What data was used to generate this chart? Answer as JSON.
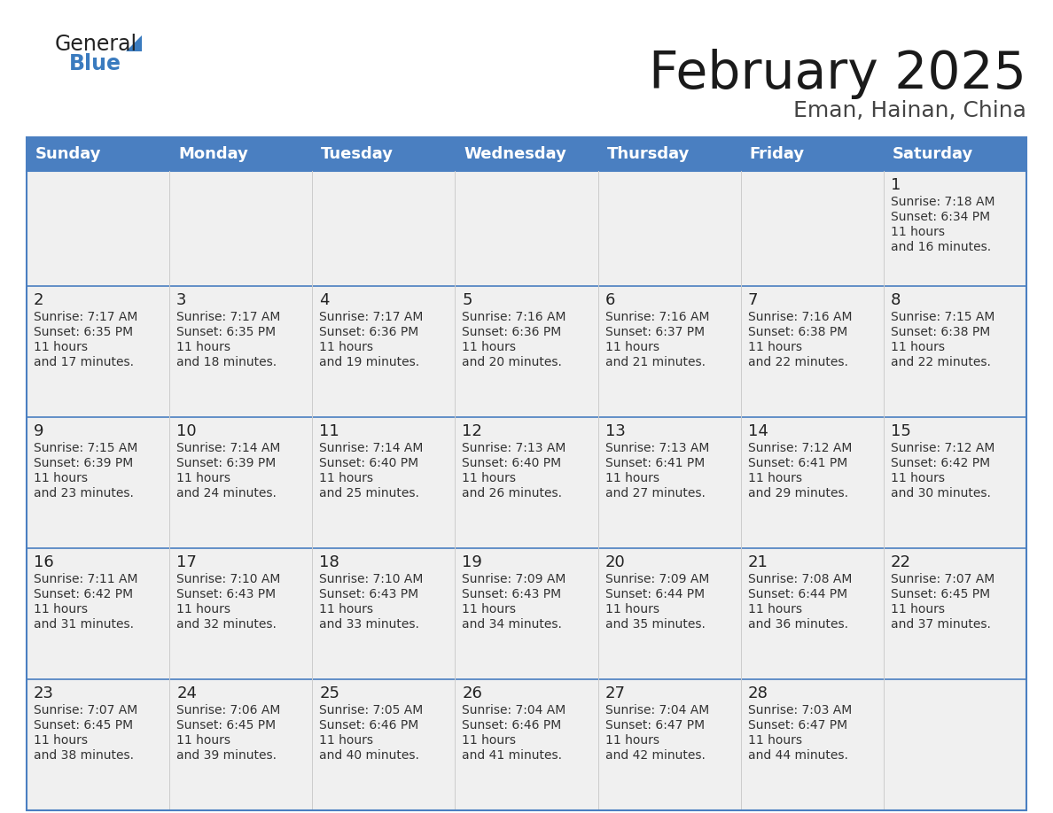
{
  "title": "February 2025",
  "subtitle": "Eman, Hainan, China",
  "days_of_week": [
    "Sunday",
    "Monday",
    "Tuesday",
    "Wednesday",
    "Thursday",
    "Friday",
    "Saturday"
  ],
  "header_bg": "#4a7fc1",
  "header_text_color": "#FFFFFF",
  "cell_bg_light": "#f0f0f0",
  "grid_line_color": "#4a7fc1",
  "title_color": "#1a1a1a",
  "subtitle_color": "#444444",
  "day_num_color": "#222222",
  "info_color": "#333333",
  "calendar_data": [
    {
      "day": 1,
      "row": 0,
      "col": 6,
      "sunrise": "7:18 AM",
      "sunset": "6:34 PM",
      "daylight": "11 hours and 16 minutes."
    },
    {
      "day": 2,
      "row": 1,
      "col": 0,
      "sunrise": "7:17 AM",
      "sunset": "6:35 PM",
      "daylight": "11 hours and 17 minutes."
    },
    {
      "day": 3,
      "row": 1,
      "col": 1,
      "sunrise": "7:17 AM",
      "sunset": "6:35 PM",
      "daylight": "11 hours and 18 minutes."
    },
    {
      "day": 4,
      "row": 1,
      "col": 2,
      "sunrise": "7:17 AM",
      "sunset": "6:36 PM",
      "daylight": "11 hours and 19 minutes."
    },
    {
      "day": 5,
      "row": 1,
      "col": 3,
      "sunrise": "7:16 AM",
      "sunset": "6:36 PM",
      "daylight": "11 hours and 20 minutes."
    },
    {
      "day": 6,
      "row": 1,
      "col": 4,
      "sunrise": "7:16 AM",
      "sunset": "6:37 PM",
      "daylight": "11 hours and 21 minutes."
    },
    {
      "day": 7,
      "row": 1,
      "col": 5,
      "sunrise": "7:16 AM",
      "sunset": "6:38 PM",
      "daylight": "11 hours and 22 minutes."
    },
    {
      "day": 8,
      "row": 1,
      "col": 6,
      "sunrise": "7:15 AM",
      "sunset": "6:38 PM",
      "daylight": "11 hours and 22 minutes."
    },
    {
      "day": 9,
      "row": 2,
      "col": 0,
      "sunrise": "7:15 AM",
      "sunset": "6:39 PM",
      "daylight": "11 hours and 23 minutes."
    },
    {
      "day": 10,
      "row": 2,
      "col": 1,
      "sunrise": "7:14 AM",
      "sunset": "6:39 PM",
      "daylight": "11 hours and 24 minutes."
    },
    {
      "day": 11,
      "row": 2,
      "col": 2,
      "sunrise": "7:14 AM",
      "sunset": "6:40 PM",
      "daylight": "11 hours and 25 minutes."
    },
    {
      "day": 12,
      "row": 2,
      "col": 3,
      "sunrise": "7:13 AM",
      "sunset": "6:40 PM",
      "daylight": "11 hours and 26 minutes."
    },
    {
      "day": 13,
      "row": 2,
      "col": 4,
      "sunrise": "7:13 AM",
      "sunset": "6:41 PM",
      "daylight": "11 hours and 27 minutes."
    },
    {
      "day": 14,
      "row": 2,
      "col": 5,
      "sunrise": "7:12 AM",
      "sunset": "6:41 PM",
      "daylight": "11 hours and 29 minutes."
    },
    {
      "day": 15,
      "row": 2,
      "col": 6,
      "sunrise": "7:12 AM",
      "sunset": "6:42 PM",
      "daylight": "11 hours and 30 minutes."
    },
    {
      "day": 16,
      "row": 3,
      "col": 0,
      "sunrise": "7:11 AM",
      "sunset": "6:42 PM",
      "daylight": "11 hours and 31 minutes."
    },
    {
      "day": 17,
      "row": 3,
      "col": 1,
      "sunrise": "7:10 AM",
      "sunset": "6:43 PM",
      "daylight": "11 hours and 32 minutes."
    },
    {
      "day": 18,
      "row": 3,
      "col": 2,
      "sunrise": "7:10 AM",
      "sunset": "6:43 PM",
      "daylight": "11 hours and 33 minutes."
    },
    {
      "day": 19,
      "row": 3,
      "col": 3,
      "sunrise": "7:09 AM",
      "sunset": "6:43 PM",
      "daylight": "11 hours and 34 minutes."
    },
    {
      "day": 20,
      "row": 3,
      "col": 4,
      "sunrise": "7:09 AM",
      "sunset": "6:44 PM",
      "daylight": "11 hours and 35 minutes."
    },
    {
      "day": 21,
      "row": 3,
      "col": 5,
      "sunrise": "7:08 AM",
      "sunset": "6:44 PM",
      "daylight": "11 hours and 36 minutes."
    },
    {
      "day": 22,
      "row": 3,
      "col": 6,
      "sunrise": "7:07 AM",
      "sunset": "6:45 PM",
      "daylight": "11 hours and 37 minutes."
    },
    {
      "day": 23,
      "row": 4,
      "col": 0,
      "sunrise": "7:07 AM",
      "sunset": "6:45 PM",
      "daylight": "11 hours and 38 minutes."
    },
    {
      "day": 24,
      "row": 4,
      "col": 1,
      "sunrise": "7:06 AM",
      "sunset": "6:45 PM",
      "daylight": "11 hours and 39 minutes."
    },
    {
      "day": 25,
      "row": 4,
      "col": 2,
      "sunrise": "7:05 AM",
      "sunset": "6:46 PM",
      "daylight": "11 hours and 40 minutes."
    },
    {
      "day": 26,
      "row": 4,
      "col": 3,
      "sunrise": "7:04 AM",
      "sunset": "6:46 PM",
      "daylight": "11 hours and 41 minutes."
    },
    {
      "day": 27,
      "row": 4,
      "col": 4,
      "sunrise": "7:04 AM",
      "sunset": "6:47 PM",
      "daylight": "11 hours and 42 minutes."
    },
    {
      "day": 28,
      "row": 4,
      "col": 5,
      "sunrise": "7:03 AM",
      "sunset": "6:47 PM",
      "daylight": "11 hours and 44 minutes."
    }
  ],
  "num_rows": 5,
  "logo_general_color": "#222222",
  "logo_blue_color": "#3a7bbf",
  "logo_triangle_color": "#3a7bbf"
}
